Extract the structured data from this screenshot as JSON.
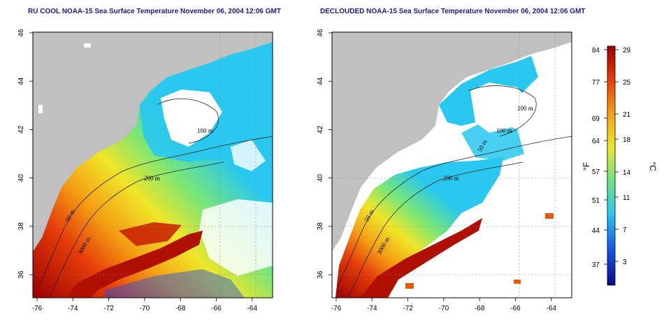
{
  "panels": [
    {
      "title": "RU COOL NOAA-15 Sea Surface Temperature November 06, 2004 12:06 GMT",
      "contour_labels": [
        "100 m",
        "200 m",
        "50 m",
        "3000 m"
      ]
    },
    {
      "title": "DECLOUDED NOAA-15 Sea Surface Temperature November 06, 2004 12:06 GMT",
      "contour_labels": [
        "100 m",
        "100 m",
        "50 m",
        "200 m",
        "50 m",
        "3000 m"
      ]
    }
  ],
  "axes": {
    "lon_ticks": [
      "-76",
      "-74",
      "-72",
      "-70",
      "-68",
      "-66",
      "-64"
    ],
    "lat_ticks": [
      "36",
      "38",
      "40",
      "42",
      "44",
      "46"
    ]
  },
  "colorbar": {
    "fahrenheit_label": "°F",
    "celsius_label": "°C",
    "fahrenheit_ticks": [
      "84",
      "77",
      "69",
      "64",
      "57",
      "51",
      "44",
      "37"
    ],
    "celsius_ticks": [
      "29",
      "25",
      "21",
      "18",
      "14",
      "11",
      "7",
      "3"
    ],
    "colors": [
      "#0a0a8c",
      "#1450e6",
      "#28c8f0",
      "#78e678",
      "#f0e628",
      "#f5a014",
      "#e63c0a",
      "#9b0000"
    ]
  },
  "colors": {
    "land": "#c0c0c0",
    "cloud": "#ffffff",
    "frame": "#000000"
  }
}
